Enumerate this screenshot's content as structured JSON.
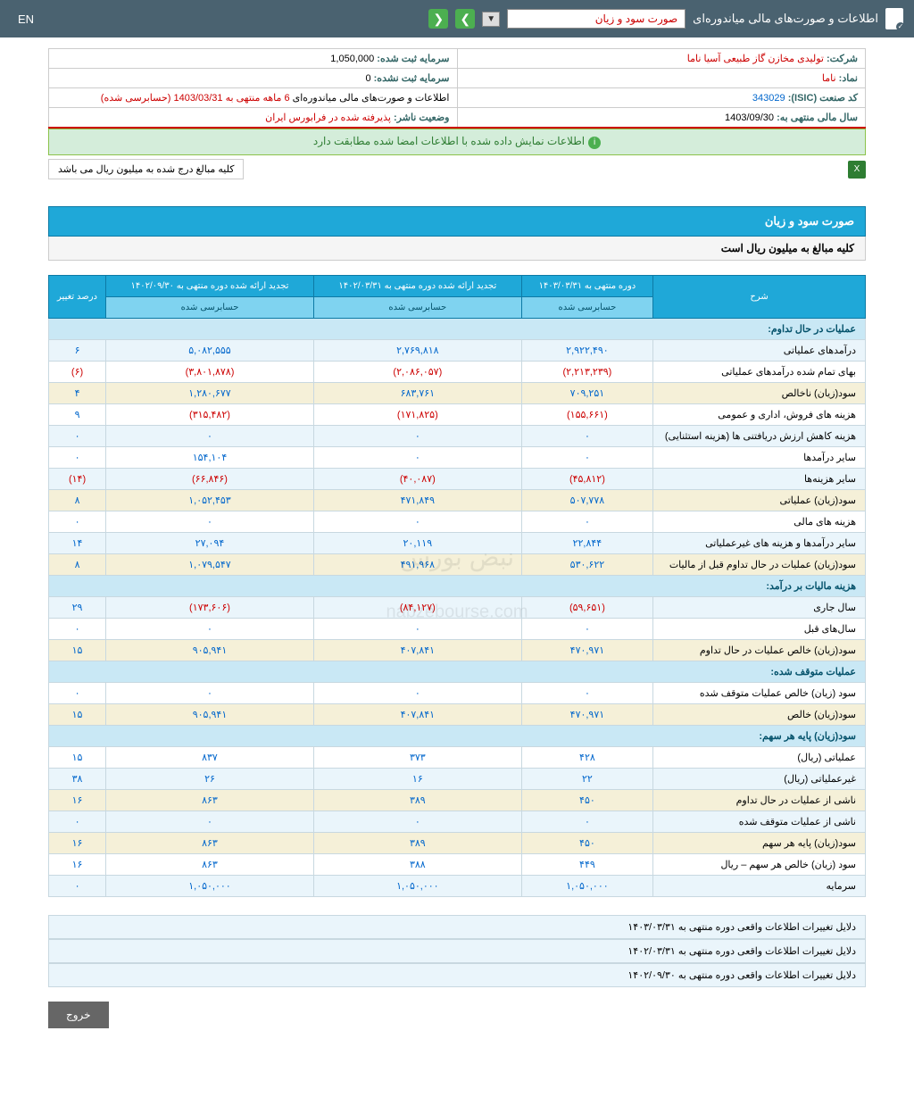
{
  "topbar": {
    "title": "اطلاعات و صورت‌های مالی میاندوره‌ای",
    "dropdown_value": "صورت سود و زیان",
    "lang": "EN"
  },
  "info": {
    "company_label": "شرکت:",
    "company_value": "تولیدی مخازن گاز طبیعی آسیا ناما",
    "capital_reg_label": "سرمایه ثبت شده:",
    "capital_reg_value": "1,050,000",
    "symbol_label": "نماد:",
    "symbol_value": "ناما",
    "capital_unreg_label": "سرمایه ثبت نشده:",
    "capital_unreg_value": "0",
    "isic_label": "کد صنعت (ISIC):",
    "isic_value": "343029",
    "report_label": "اطلاعات و صورت‌های مالی میاندوره‌ای",
    "report_value": "6 ماهه منتهی به 1403/03/31 (حسابرسی شده)",
    "fiscal_label": "سال مالی منتهی به:",
    "fiscal_value": "1403/09/30",
    "status_label": "وضعیت ناشر:",
    "status_value": "پذیرفته شده در فرابورس ایران"
  },
  "banner": "اطلاعات نمایش داده شده با اطلاعات امضا شده مطابقت دارد",
  "note": "کلیه مبالغ درج شده به میلیون ریال می باشد",
  "section": {
    "title": "صورت سود و زیان",
    "subtitle": "کلیه مبالغ به میلیون ریال است"
  },
  "headers": {
    "desc": "شرح",
    "p1": "دوره منتهی به ۱۴۰۳/۰۳/۳۱",
    "p2": "تجدید ارائه شده دوره منتهی به ۱۴۰۲/۰۳/۳۱",
    "p3": "تجدید ارائه شده دوره منتهی به ۱۴۰۲/۰۹/۳۰",
    "pct": "درصد تغییر",
    "audited": "حسابرسی شده"
  },
  "sections": {
    "s1": "عملیات در حال تداوم:",
    "s2": "هزینه مالیات بر درآمد:",
    "s3": "عملیات متوقف شده:",
    "s4": "سود(زیان) پایه هر سهم:"
  },
  "rows": [
    {
      "label": "درآمدهای عملیاتی",
      "v1": "۲,۹۲۲,۴۹۰",
      "v2": "۲,۷۶۹,۸۱۸",
      "v3": "۵,۰۸۲,۵۵۵",
      "pct": "۶",
      "alt": 0,
      "neg": [
        false,
        false,
        false,
        false
      ]
    },
    {
      "label": "بهای تمام شده درآمدهای عملیاتی",
      "v1": "(۲,۲۱۳,۲۳۹)",
      "v2": "(۲,۰۸۶,۰۵۷)",
      "v3": "(۳,۸۰۱,۸۷۸)",
      "pct": "(۶)",
      "alt": "w",
      "neg": [
        true,
        true,
        true,
        true
      ]
    },
    {
      "label": "سود(زیان) ناخالص",
      "v1": "۷۰۹,۲۵۱",
      "v2": "۶۸۳,۷۶۱",
      "v3": "۱,۲۸۰,۶۷۷",
      "pct": "۴",
      "alt": 1,
      "neg": [
        false,
        false,
        false,
        false
      ]
    },
    {
      "label": "هزینه های فروش، اداری و عمومی",
      "v1": "(۱۵۵,۶۶۱)",
      "v2": "(۱۷۱,۸۲۵)",
      "v3": "(۳۱۵,۴۸۲)",
      "pct": "۹",
      "alt": "w",
      "neg": [
        true,
        true,
        true,
        false
      ]
    },
    {
      "label": "هزینه کاهش ارزش دریافتنی ها (هزینه استثنایی)",
      "v1": "۰",
      "v2": "۰",
      "v3": "۰",
      "pct": "۰",
      "alt": 0,
      "neg": [
        false,
        false,
        false,
        false
      ]
    },
    {
      "label": "سایر درآمدها",
      "v1": "۰",
      "v2": "۰",
      "v3": "۱۵۴,۱۰۴",
      "pct": "۰",
      "alt": "w",
      "neg": [
        false,
        false,
        false,
        false
      ]
    },
    {
      "label": "سایر هزینه‌ها",
      "v1": "(۴۵,۸۱۲)",
      "v2": "(۴۰,۰۸۷)",
      "v3": "(۶۶,۸۴۶)",
      "pct": "(۱۴)",
      "alt": 0,
      "neg": [
        true,
        true,
        true,
        true
      ]
    },
    {
      "label": "سود(زیان) عملیاتی",
      "v1": "۵۰۷,۷۷۸",
      "v2": "۴۷۱,۸۴۹",
      "v3": "۱,۰۵۲,۴۵۳",
      "pct": "۸",
      "alt": 1,
      "neg": [
        false,
        false,
        false,
        false
      ]
    },
    {
      "label": "هزینه های مالی",
      "v1": "۰",
      "v2": "۰",
      "v3": "۰",
      "pct": "۰",
      "alt": "w",
      "neg": [
        false,
        false,
        false,
        false
      ]
    },
    {
      "label": "سایر درآمدها و هزینه های غیرعملیاتی",
      "v1": "۲۲,۸۴۴",
      "v2": "۲۰,۱۱۹",
      "v3": "۲۷,۰۹۴",
      "pct": "۱۴",
      "alt": 0,
      "neg": [
        false,
        false,
        false,
        false
      ]
    },
    {
      "label": "سود(زیان) عملیات در حال تداوم قبل از مالیات",
      "v1": "۵۳۰,۶۲۲",
      "v2": "۴۹۱,۹۶۸",
      "v3": "۱,۰۷۹,۵۴۷",
      "pct": "۸",
      "alt": 1,
      "neg": [
        false,
        false,
        false,
        false
      ]
    }
  ],
  "rows2": [
    {
      "label": "سال جاری",
      "v1": "(۵۹,۶۵۱)",
      "v2": "(۸۴,۱۲۷)",
      "v3": "(۱۷۳,۶۰۶)",
      "pct": "۲۹",
      "alt": 0,
      "neg": [
        true,
        true,
        true,
        false
      ]
    },
    {
      "label": "سال‌های قبل",
      "v1": "۰",
      "v2": "۰",
      "v3": "۰",
      "pct": "۰",
      "alt": "w",
      "neg": [
        false,
        false,
        false,
        false
      ]
    },
    {
      "label": "سود(زیان) خالص عملیات در حال تداوم",
      "v1": "۴۷۰,۹۷۱",
      "v2": "۴۰۷,۸۴۱",
      "v3": "۹۰۵,۹۴۱",
      "pct": "۱۵",
      "alt": 1,
      "neg": [
        false,
        false,
        false,
        false
      ]
    }
  ],
  "rows3": [
    {
      "label": "سود (زیان) خالص عملیات متوقف شده",
      "v1": "۰",
      "v2": "۰",
      "v3": "۰",
      "pct": "۰",
      "alt": "w",
      "neg": [
        false,
        false,
        false,
        false
      ]
    },
    {
      "label": "سود(زیان) خالص",
      "v1": "۴۷۰,۹۷۱",
      "v2": "۴۰۷,۸۴۱",
      "v3": "۹۰۵,۹۴۱",
      "pct": "۱۵",
      "alt": 1,
      "neg": [
        false,
        false,
        false,
        false
      ]
    }
  ],
  "rows4": [
    {
      "label": "عملیاتی (ریال)",
      "v1": "۴۲۸",
      "v2": "۳۷۳",
      "v3": "۸۳۷",
      "pct": "۱۵",
      "alt": "w",
      "neg": [
        false,
        false,
        false,
        false
      ]
    },
    {
      "label": "غیرعملیاتی (ریال)",
      "v1": "۲۲",
      "v2": "۱۶",
      "v3": "۲۶",
      "pct": "۳۸",
      "alt": 0,
      "neg": [
        false,
        false,
        false,
        false
      ]
    },
    {
      "label": "ناشی از عملیات در حال تداوم",
      "v1": "۴۵۰",
      "v2": "۳۸۹",
      "v3": "۸۶۳",
      "pct": "۱۶",
      "alt": 1,
      "neg": [
        false,
        false,
        false,
        false
      ]
    },
    {
      "label": "ناشی از عملیات متوقف شده",
      "v1": "۰",
      "v2": "۰",
      "v3": "۰",
      "pct": "۰",
      "alt": 0,
      "neg": [
        false,
        false,
        false,
        false
      ]
    },
    {
      "label": "سود(زیان) پایه هر سهم",
      "v1": "۴۵۰",
      "v2": "۳۸۹",
      "v3": "۸۶۳",
      "pct": "۱۶",
      "alt": 1,
      "neg": [
        false,
        false,
        false,
        false
      ]
    },
    {
      "label": "سود (زیان) خالص هر سهم – ریال",
      "v1": "۴۴۹",
      "v2": "۳۸۸",
      "v3": "۸۶۳",
      "pct": "۱۶",
      "alt": "w",
      "neg": [
        false,
        false,
        false,
        false
      ]
    },
    {
      "label": "سرمایه",
      "v1": "۱,۰۵۰,۰۰۰",
      "v2": "۱,۰۵۰,۰۰۰",
      "v3": "۱,۰۵۰,۰۰۰",
      "pct": "۰",
      "alt": 0,
      "neg": [
        false,
        false,
        false,
        false
      ]
    }
  ],
  "reasons": [
    "دلایل تغییرات اطلاعات واقعی دوره منتهی به ۱۴۰۳/۰۳/۳۱",
    "دلایل تغییرات اطلاعات واقعی دوره منتهی به ۱۴۰۲/۰۳/۳۱",
    "دلایل تغییرات اطلاعات واقعی دوره منتهی به ۱۴۰۲/۰۹/۳۰"
  ],
  "exit": "خروج",
  "watermark1": "نبض بورس",
  "watermark2": "nabzebourse.com"
}
